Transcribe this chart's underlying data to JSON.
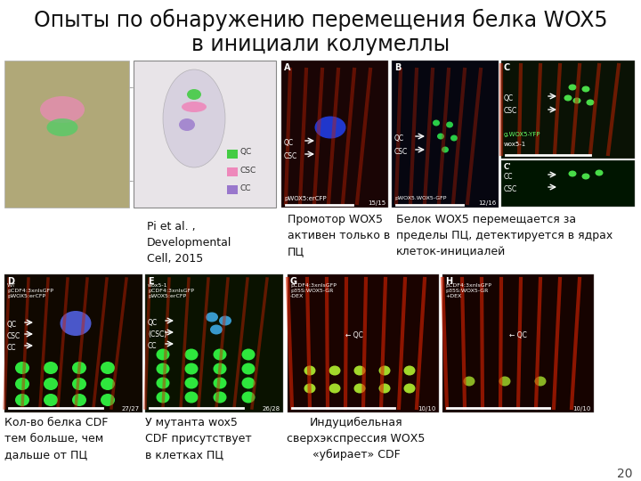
{
  "title_line1": "Опыты по обнаружению перемещения белка WOX5",
  "title_line2": "в инициали колумеллы",
  "title_fontsize": 17,
  "bg_color": "#ffffff",
  "caption_left": "Pi et al. ,\nDevelopmental\nCell, 2015",
  "caption_mid": "Промотор WOX5\nактивен только в\nПЦ",
  "caption_right": "Белок WOX5 перемещается за\nпределы ПЦ, детектируется в ядрах\nклеток-инициалей",
  "caption_bot_left": "Кол-во белка CDF\nтем больше, чем\nдальше от ПЦ",
  "caption_bot_mid": "У мутанта wox5\nCDF присутствует\nв клетках ПЦ",
  "caption_bot_right": "Индуцибельная\nсверхэкспрессия WОX5\n«убирает» CDF",
  "page_num": "20"
}
